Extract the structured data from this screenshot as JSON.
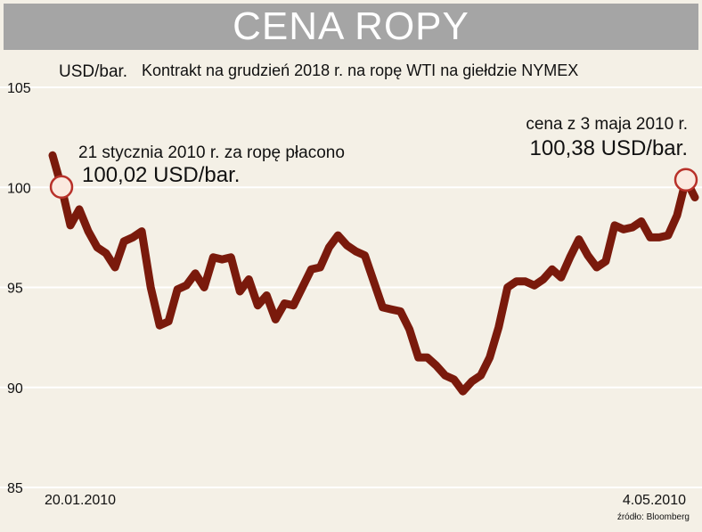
{
  "title": "CENA ROPY",
  "colors": {
    "line": "#7a1a0c",
    "marker_fill": "#fbe9df",
    "marker_stroke": "#b8312a",
    "grid": "#ffffff",
    "background": "#f4f0e6",
    "title_bar": "#a5a5a5"
  },
  "chart_data": {
    "type": "line",
    "title": "CENA ROPY",
    "subtitle": "Kontrakt na grudzień 2018 r. na ropę WTI na giełdzie NYMEX",
    "ylabel": "USD/bar.",
    "ylim": [
      85,
      105
    ],
    "yticks": [
      "105",
      "100",
      "95",
      "90",
      "85"
    ],
    "ytick_values": [
      105,
      100,
      95,
      90,
      85
    ],
    "grid": true,
    "x_start_label": "20.01.2010",
    "x_end_label": "4.05.2010",
    "source": "źródło: Bloomberg",
    "series": [
      {
        "values": [
          101.6,
          100.02,
          98.1,
          98.9,
          97.8,
          97.0,
          96.7,
          96.0,
          97.3,
          97.5,
          97.8,
          95.0,
          93.1,
          93.3,
          94.9,
          95.1,
          95.7,
          95.0,
          96.5,
          96.4,
          96.5,
          94.8,
          95.4,
          94.1,
          94.6,
          93.4,
          94.2,
          94.1,
          95.0,
          95.9,
          96.0,
          97.0,
          97.6,
          97.1,
          96.8,
          96.6,
          95.3,
          94.0,
          93.9,
          93.8,
          92.9,
          91.5,
          91.5,
          91.1,
          90.6,
          90.4,
          89.8,
          90.3,
          90.6,
          91.5,
          93.0,
          95.0,
          95.3,
          95.3,
          95.1,
          95.4,
          95.9,
          95.5,
          96.5,
          97.4,
          96.6,
          96.0,
          96.3,
          98.1,
          97.9,
          98.0,
          98.3,
          97.5,
          97.5,
          97.6,
          98.6,
          100.38,
          99.5
        ]
      }
    ],
    "annotations": [
      {
        "line1": "21 stycznia 2010 r. za ropę płacono",
        "line2": "100,02 USD/bar.",
        "point_index": 1,
        "value": 100.02
      },
      {
        "line1": "cena z 3 maja 2010 r.",
        "line2": "100,38 USD/bar.",
        "point_index": 71,
        "value": 100.38
      }
    ]
  }
}
